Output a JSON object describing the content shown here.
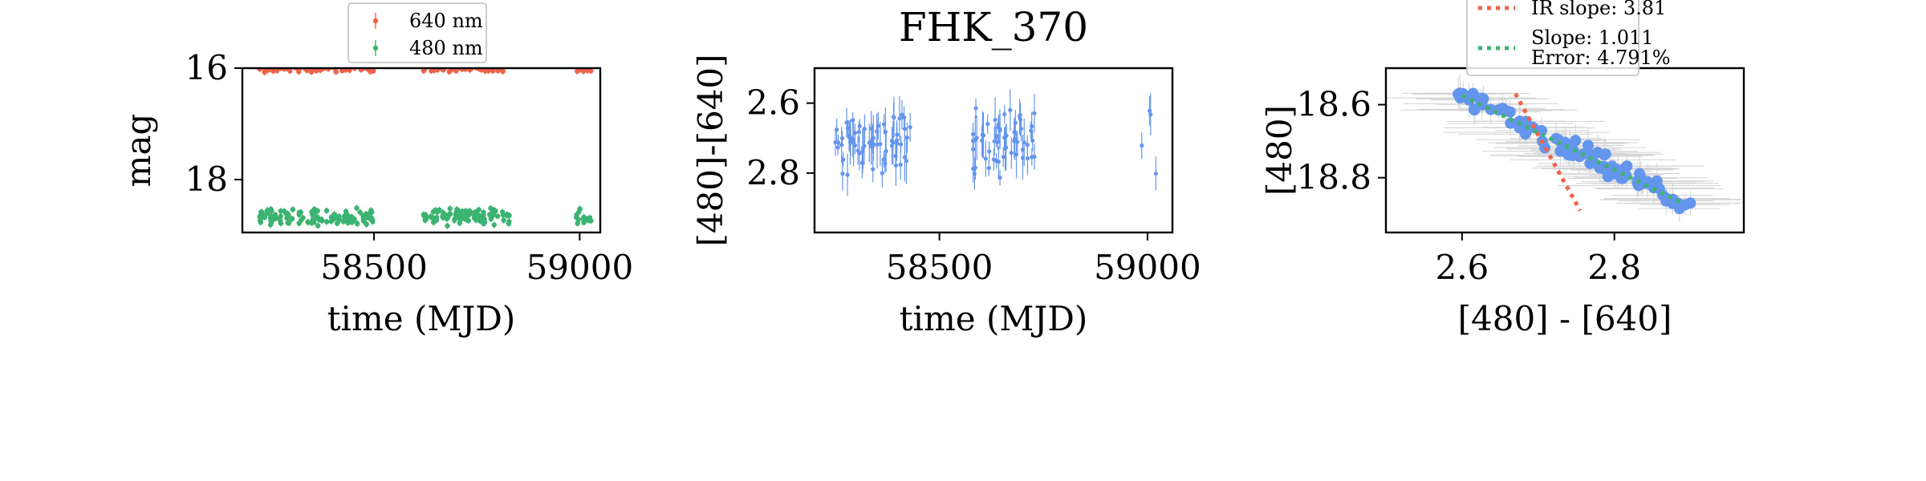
{
  "chart_data": [
    {
      "type": "scatter",
      "title": "",
      "xlabel": "time (MJD)",
      "ylabel": "mag",
      "xlim": [
        58180,
        59050
      ],
      "ylim": [
        16.0,
        18.95
      ],
      "y_inverted": true,
      "xticks": [
        58500,
        59000
      ],
      "yticks": [
        16,
        18
      ],
      "grid": false,
      "legend": "top-center",
      "series": [
        {
          "name": "640 nm",
          "color": "#f0634a",
          "segments": [
            [
              58220,
              58500
            ],
            [
              58620,
              58820
            ],
            [
              58990,
              59030
            ]
          ],
          "y_range": [
            15.92,
            16.08
          ]
        },
        {
          "name": "480 nm",
          "color": "#3cb371",
          "segments": [
            [
              58220,
              58500
            ],
            [
              58620,
              58830
            ],
            [
              58990,
              59030
            ]
          ],
          "y_range": [
            18.5,
            18.85
          ]
        }
      ]
    },
    {
      "type": "scatter",
      "title": "FHK_370",
      "xlabel": "time (MJD)",
      "ylabel": "[480]-[640]",
      "xlim": [
        58200,
        59060
      ],
      "ylim": [
        2.5,
        2.97
      ],
      "y_inverted": true,
      "xticks": [
        58500,
        59000
      ],
      "yticks": [
        2.6,
        2.8
      ],
      "grid": false,
      "series": [
        {
          "name": "",
          "color": "#6495ed",
          "segments": [
            [
              58250,
              58430
            ],
            [
              58580,
              58730
            ],
            [
              58980,
              59030
            ]
          ],
          "y_range": [
            2.6,
            2.82
          ]
        }
      ]
    },
    {
      "type": "scatter",
      "title": "",
      "xlabel": "[480] - [640]",
      "ylabel": "[480]",
      "xlim": [
        2.5,
        2.97
      ],
      "ylim": [
        18.5,
        18.95
      ],
      "y_inverted": true,
      "xticks": [
        2.6,
        2.8
      ],
      "yticks": [
        18.6,
        18.8
      ],
      "grid": false,
      "legend": "top-center",
      "points_color": "#6495ed",
      "error_color": "#d3d3d3",
      "points_x_range": [
        2.58,
        2.9
      ],
      "fits": [
        {
          "name": "IR slope: 3.81",
          "color": "#f0634a",
          "x": [
            2.67,
            2.755
          ],
          "y": [
            18.57,
            18.89
          ]
        },
        {
          "name": "Slope: 1.011",
          "name2": "Error: 4.791%",
          "color": "#3cb371",
          "x": [
            2.6,
            2.89
          ],
          "y": [
            18.575,
            18.87
          ]
        }
      ]
    }
  ]
}
